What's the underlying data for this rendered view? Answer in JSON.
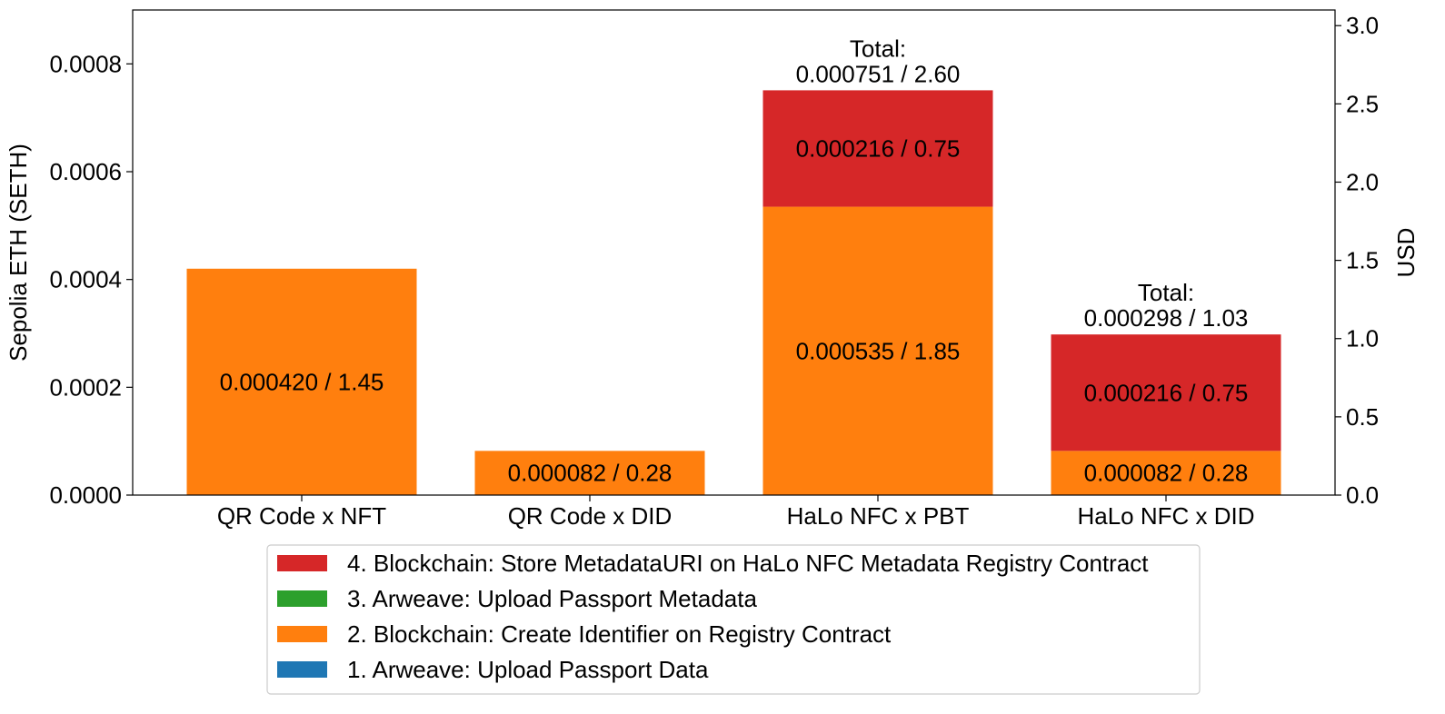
{
  "chart_data": {
    "type": "bar",
    "stacked": true,
    "categories": [
      "QR Code x NFT",
      "QR Code x DID",
      "HaLo NFC x PBT",
      "HaLo NFC x DID"
    ],
    "ylabel": "Sepolia ETH (SETH)",
    "y2label": "USD",
    "ylim": [
      0,
      0.0009
    ],
    "y2lim": [
      0,
      3.1
    ],
    "yticks": [
      "0.0000",
      "0.0002",
      "0.0004",
      "0.0006",
      "0.0008"
    ],
    "y2ticks": [
      "0.0",
      "0.5",
      "1.0",
      "1.5",
      "2.0",
      "2.5",
      "3.0"
    ],
    "series": [
      {
        "name": "1. Arweave: Upload Passport Data",
        "color": "#1f77b4",
        "values": [
          0,
          0,
          0,
          0
        ],
        "labels": [
          "",
          "",
          "",
          ""
        ]
      },
      {
        "name": "2. Blockchain: Create Identifier on Registry Contract",
        "color": "#ff7f0e",
        "values": [
          0.00042,
          8.2e-05,
          0.000535,
          8.2e-05
        ],
        "labels": [
          "0.000420 / 1.45",
          "0.000082 / 0.28",
          "0.000535 / 1.85",
          "0.000082 / 0.28"
        ]
      },
      {
        "name": "3. Arweave: Upload Passport Metadata",
        "color": "#2ca02c",
        "values": [
          0,
          0,
          0,
          0
        ],
        "labels": [
          "",
          "",
          "",
          ""
        ]
      },
      {
        "name": "4. Blockchain: Store MetadataURI on HaLo NFC Metadata Registry Contract",
        "color": "#d62728",
        "values": [
          0,
          0,
          0.000216,
          0.000216
        ],
        "labels": [
          "",
          "",
          "0.000216 / 0.75",
          "0.000216 / 0.75"
        ]
      }
    ],
    "totals": [
      {
        "category": "HaLo NFC x PBT",
        "value": 0.000751,
        "line1": "Total:",
        "line2": "0.000751 / 2.60"
      },
      {
        "category": "HaLo NFC x DID",
        "value": 0.000298,
        "line1": "Total:",
        "line2": "0.000298 / 1.03"
      }
    ],
    "legend": {
      "placement": "bottom-center",
      "order": [
        3,
        2,
        1,
        0
      ]
    },
    "grid": false
  }
}
